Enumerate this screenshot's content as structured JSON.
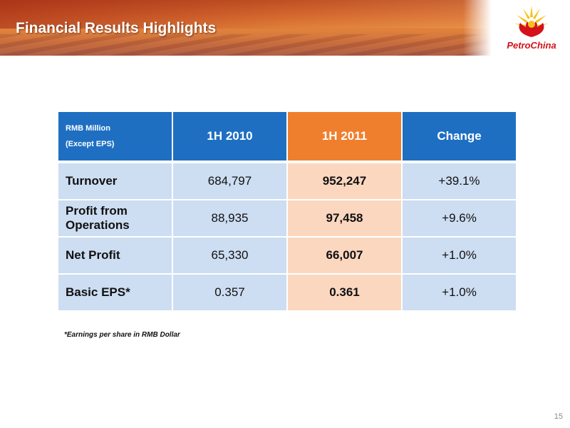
{
  "slide": {
    "title": "Financial Results Highlights",
    "page_number": "15",
    "footnote": "*Earnings per share in RMB Dollar"
  },
  "logo": {
    "icon": "petrochina-sun-icon",
    "text": "PetroChina",
    "colors": {
      "red": "#d4121a",
      "yellow": "#f6c21a"
    }
  },
  "table": {
    "corner_line1": "RMB Million",
    "corner_line2": "(Except EPS)",
    "columns": [
      "1H 2010",
      "1H 2011",
      "Change"
    ],
    "rows": [
      {
        "label": "Turnover",
        "cells": [
          "684,797",
          "952,247",
          "+39.1%"
        ]
      },
      {
        "label": "Profit from Operations",
        "cells": [
          "88,935",
          "97,458",
          "+9.6%"
        ]
      },
      {
        "label": "Net Profit",
        "cells": [
          "65,330",
          "66,007",
          "+1.0%"
        ]
      },
      {
        "label": "Basic EPS*",
        "cells": [
          "0.357",
          "0.361",
          "+1.0%"
        ]
      }
    ],
    "colors": {
      "header_blue": "#1e6fc2",
      "header_orange": "#f07f2d",
      "cell_blue": "#cdddf2",
      "cell_peach": "#fcd7c0"
    }
  }
}
